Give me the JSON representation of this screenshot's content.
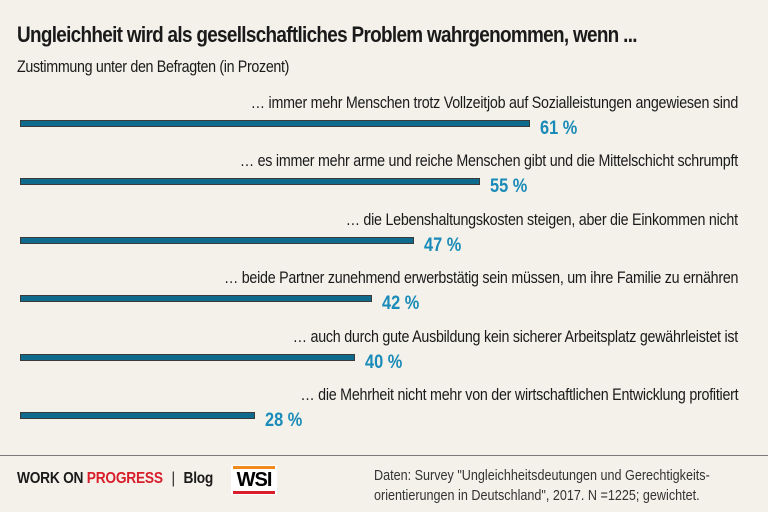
{
  "chart_data": {
    "type": "bar",
    "orientation": "horizontal",
    "title": "Ungleichheit wird als gesellschaftliches Problem wahrgenommen, wenn ...",
    "subtitle": "Zustimmung unter den Befragten (in Prozent)",
    "categories": [
      "… immer mehr Menschen trotz Vollzeitjob auf Sozialleistungen angewiesen sind",
      "… es immer mehr arme und reiche Menschen gibt und die Mittelschicht schrumpft",
      "… die Lebenshaltungskosten steigen, aber die Einkommen nicht",
      "… beide Partner zunehmend erwerbstätig sein müssen, um ihre Familie zu ernähren",
      "… auch durch gute Ausbildung kein sicherer Arbeitsplatz gewährleistet ist",
      "… die Mehrheit nicht mehr von der wirtschaftlichen Entwicklung profitiert"
    ],
    "values": [
      61,
      55,
      47,
      42,
      40,
      28
    ],
    "value_labels": [
      "61 %",
      "55 %",
      "47 %",
      "42 %",
      "40 %",
      "28 %"
    ],
    "unit": "%",
    "xlim": [
      0,
      100
    ],
    "grid": false,
    "legend": "none",
    "colors": {
      "bar": "#0e6b8e",
      "value_label": "#1a8bb8"
    }
  },
  "footer": {
    "brand_black": "WORK ON",
    "brand_red": "PROGRESS",
    "separator": "|",
    "blog": "Blog",
    "logo": "WSI",
    "source_line1": "Daten: Survey \"Ungleichheitsdeutungen und Gerechtigkeits-",
    "source_line2": "orientierungen in Deutschland\", 2017. N =1225; gewichtet."
  }
}
